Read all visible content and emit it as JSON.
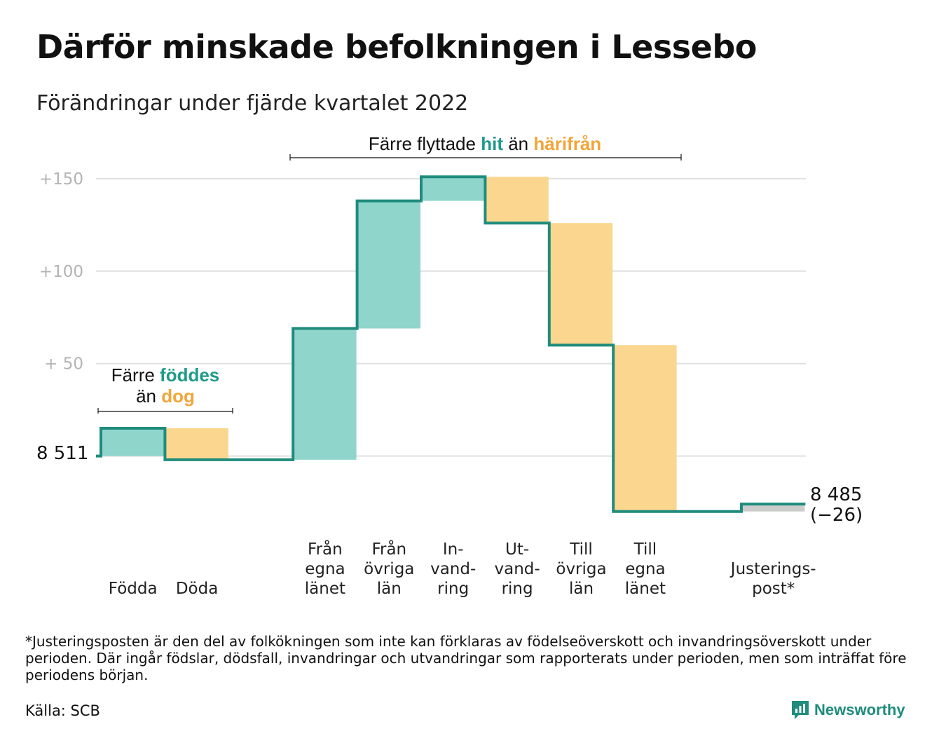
{
  "title": "Därför minskade befolkningen i Lessebo",
  "subtitle": "Förändringar under fjärde kvartalet 2022",
  "annotations": {
    "births": {
      "prefix": "Färre ",
      "highlight1": "föddes",
      "middle": "än ",
      "highlight2": "dog"
    },
    "migration": {
      "prefix": "Färre flyttade ",
      "highlight1": "hit",
      "middle": " än ",
      "highlight2": "härifrån"
    }
  },
  "chart_data": {
    "type": "waterfall",
    "start_label": "8 511",
    "end_label": "8 485",
    "end_change_label": "(−26)",
    "yticks": [
      {
        "value": 150,
        "label": "+150"
      },
      {
        "value": 100,
        "label": "+100"
      },
      {
        "value": 50,
        "label": "+ 50"
      }
    ],
    "ylim": [
      -32,
      153
    ],
    "steps": [
      {
        "label": [
          "Födda"
        ],
        "change": 15,
        "kind": "in"
      },
      {
        "label": [
          "Döda"
        ],
        "change": -17,
        "kind": "out"
      },
      {
        "label": [],
        "change": 0,
        "kind": "none"
      },
      {
        "label": [
          "Från",
          "egna",
          "länet"
        ],
        "change": 71,
        "kind": "in"
      },
      {
        "label": [
          "Från",
          "övriga",
          "län"
        ],
        "change": 69,
        "kind": "in"
      },
      {
        "label": [
          "In-",
          "vand-",
          "ring"
        ],
        "change": 13,
        "kind": "in"
      },
      {
        "label": [
          "Ut-",
          "vand-",
          "ring"
        ],
        "change": -25,
        "kind": "out"
      },
      {
        "label": [
          "Till",
          "övriga",
          "län"
        ],
        "change": -66,
        "kind": "out"
      },
      {
        "label": [
          "Till",
          "egna",
          "länet"
        ],
        "change": -90,
        "kind": "out"
      },
      {
        "label": [],
        "change": 0,
        "kind": "none"
      },
      {
        "label": [
          "Justerings-",
          "post*"
        ],
        "change": 4,
        "kind": "adjust"
      }
    ]
  },
  "colors": {
    "step_line": "#1f8c7c",
    "inflow": "#8fd5cc",
    "outflow": "#fbd68e",
    "adjust": "#cccccc",
    "grid": "#e0e0e0",
    "hit_text": "#1f9a8a",
    "harifran_text": "#f2a53a"
  },
  "footnote": "*Justeringsposten är den del av folkökningen som inte kan förklaras av födelseöverskott och invandringsöverskott under perioden. Där ingår födslar, dödsfall, invandringar och utvandringar som rapporterats under perioden, men som inträffat före periodens början.",
  "source": "Källa: SCB",
  "brand": {
    "name": "Newsworthy",
    "icon": "newsworthy-logo-icon"
  }
}
